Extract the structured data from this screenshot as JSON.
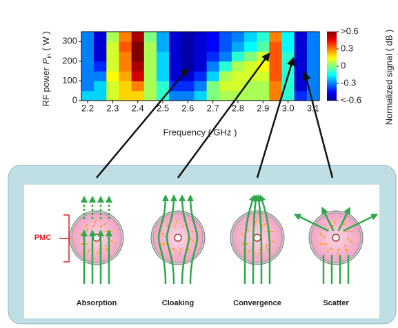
{
  "chart_data": {
    "type": "heatmap",
    "xlabel": "Frequency ( GHz )",
    "ylabel": [
      "RF power",
      "P",
      "in",
      "( W )"
    ],
    "zlabel": "Normalized signal ( dB )",
    "x": [
      2.2,
      2.25,
      2.3,
      2.35,
      2.4,
      2.45,
      2.5,
      2.55,
      2.6,
      2.65,
      2.7,
      2.75,
      2.8,
      2.85,
      2.9,
      2.95,
      3.0,
      3.05,
      3.1
    ],
    "y": [
      25,
      75,
      125,
      175,
      225,
      275,
      325
    ],
    "z": [
      [
        -0.2,
        -0.2,
        0.1,
        0.2,
        0.2,
        0.05,
        -0.1,
        -0.3,
        -0.3,
        -0.2,
        0,
        0.05,
        0.05,
        0.05,
        0.05,
        0.3,
        -0.1,
        -0.4,
        -0.3
      ],
      [
        -0.3,
        -0.2,
        0.1,
        0.2,
        0.3,
        0.05,
        -0.1,
        -0.4,
        -0.4,
        -0.3,
        0,
        0.1,
        0.1,
        0.05,
        0.05,
        0.3,
        -0.1,
        -0.5,
        -0.3
      ],
      [
        -0.3,
        -0.3,
        0.15,
        0.25,
        0.5,
        0.05,
        -0.2,
        -0.5,
        -0.5,
        -0.4,
        -0.2,
        0.05,
        0.1,
        0.1,
        0.1,
        0.35,
        -0.1,
        -0.5,
        -0.3
      ],
      [
        -0.3,
        -0.4,
        0.1,
        0.3,
        0.55,
        0.05,
        -0.2,
        -0.5,
        -0.55,
        -0.5,
        -0.3,
        -0.1,
        0.05,
        0.1,
        0.15,
        0.35,
        -0.1,
        -0.5,
        -0.3
      ],
      [
        -0.3,
        -0.5,
        0.1,
        0.3,
        0.6,
        0.05,
        -0.2,
        -0.5,
        -0.55,
        -0.5,
        -0.4,
        -0.3,
        -0.1,
        0,
        0.1,
        0.35,
        -0.1,
        -0.5,
        -0.3
      ],
      [
        -0.3,
        -0.5,
        0.1,
        0.35,
        0.6,
        0.05,
        -0.25,
        -0.5,
        -0.55,
        -0.5,
        -0.45,
        -0.35,
        -0.25,
        -0.15,
        -0.05,
        0.35,
        -0.15,
        -0.5,
        -0.3
      ],
      [
        -0.3,
        -0.5,
        0.05,
        0.3,
        0.55,
        0,
        -0.25,
        -0.5,
        -0.55,
        -0.5,
        -0.45,
        -0.35,
        -0.3,
        -0.2,
        -0.1,
        0.3,
        -0.15,
        -0.5,
        -0.3
      ]
    ],
    "xlim": [
      2.175,
      3.125
    ],
    "ylim": [
      0,
      350
    ],
    "xticks": [
      2.2,
      2.3,
      2.4,
      2.5,
      2.6,
      2.7,
      2.8,
      2.9,
      {
        "value": 3,
        "label": "3.0"
      },
      3.1
    ],
    "yticks": [
      0,
      100,
      200,
      300
    ],
    "zlim": [
      -0.6,
      0.6
    ],
    "zticks": [
      {
        "value": 0.6,
        "label": ">0.6"
      },
      0.3,
      0,
      -0.3,
      {
        "value": -0.6,
        "label": "<-0.6"
      }
    ],
    "colormap": "jet"
  },
  "diagram": {
    "bracket_label": "PMC",
    "panels": [
      "Absorption",
      "Cloaking",
      "Convergence",
      "Scatter"
    ]
  }
}
